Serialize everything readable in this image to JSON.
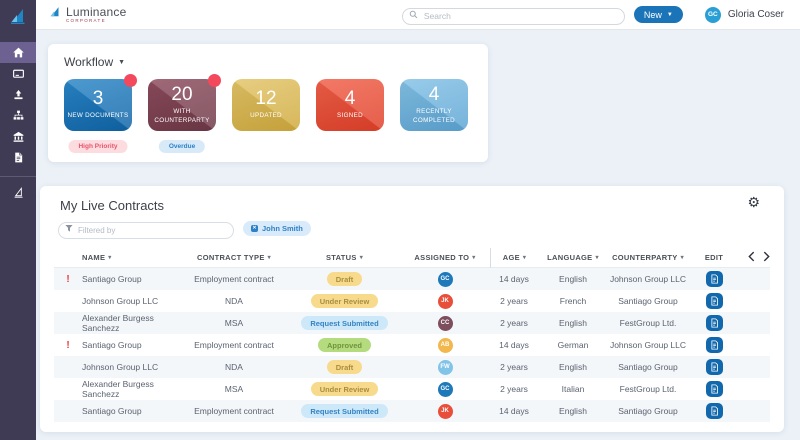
{
  "topbar": {
    "brand": {
      "name": "Luminance",
      "tagline": "CORPORATE"
    },
    "search": {
      "placeholder": "Search"
    },
    "new_button": {
      "label": "New"
    },
    "user": {
      "initials": "GC",
      "name": "Gloria Coser",
      "color": "#2a9fd6"
    }
  },
  "sidebar": {
    "colors": {
      "bg": "#3f3b54",
      "active": "#6c6190"
    },
    "items": [
      {
        "id": "home",
        "icon": "home-icon",
        "active": true
      },
      {
        "id": "contracts",
        "icon": "card-icon",
        "active": false
      },
      {
        "id": "upload",
        "icon": "upload-icon",
        "active": false
      },
      {
        "id": "structure",
        "icon": "sitemap-icon",
        "active": false
      },
      {
        "id": "organisation",
        "icon": "bank-icon",
        "active": false
      },
      {
        "id": "documents",
        "icon": "document-icon",
        "active": false
      }
    ],
    "bottom_items": [
      {
        "id": "luminance-sail",
        "icon": "sail-outline-icon",
        "active": false
      }
    ]
  },
  "workflow": {
    "title": "Workflow",
    "dot_color": "#f4485c",
    "cards": [
      {
        "value": "3",
        "label": "NEW DOCUMENTS",
        "color_top": "#2a87c8",
        "color_bottom": "#0f63a6",
        "notification_dot": true
      },
      {
        "value": "20",
        "label": "WITH COUNTERPARTY",
        "color_top": "#8d4c5e",
        "color_bottom": "#6e3847",
        "notification_dot": true
      },
      {
        "value": "12",
        "label": "UPDATED",
        "color_top": "#e2c468",
        "color_bottom": "#cfa93c",
        "notification_dot": false
      },
      {
        "value": "4",
        "label": "SIGNED",
        "color_top": "#f06049",
        "color_bottom": "#df3f28",
        "notification_dot": false
      },
      {
        "value": "4",
        "label": "RECENTLY COMPLETED",
        "color_top": "#84c2e6",
        "color_bottom": "#5ba3d3",
        "notification_dot": false
      }
    ],
    "badges": [
      {
        "under_card": 0,
        "text": "High Priority",
        "bg": "#fcdcdf",
        "fg": "#e4556a"
      },
      {
        "under_card": 1,
        "text": "Overdue",
        "bg": "#d8eaf8",
        "fg": "#2b80c8"
      }
    ]
  },
  "contracts": {
    "title": "My Live Contracts",
    "filter": {
      "placeholder": "Filtered by",
      "chip": "John Smith"
    },
    "columns": [
      {
        "label": "NAME",
        "sortable": true
      },
      {
        "label": "CONTRACT TYPE",
        "sortable": true
      },
      {
        "label": "STATUS",
        "sortable": true
      },
      {
        "label": "ASSIGNED TO",
        "sortable": true
      },
      {
        "label": "AGE",
        "sortable": true
      },
      {
        "label": "LANGUAGE",
        "sortable": true
      },
      {
        "label": "COUNTERPARTY",
        "sortable": true
      },
      {
        "label": "EDIT",
        "sortable": false
      }
    ],
    "status_styles": {
      "Draft": {
        "bg": "#f8da8c",
        "fg": "#a98e3f"
      },
      "Under Review": {
        "bg": "#f8da8c",
        "fg": "#a98e3f"
      },
      "Request Submitted": {
        "bg": "#cde8f8",
        "fg": "#3584c4"
      },
      "Approved": {
        "bg": "#b4dc7e",
        "fg": "#71943c"
      }
    },
    "rows": [
      {
        "urgent": true,
        "name": "Santiago Group",
        "type": "Employment contract",
        "status": "Draft",
        "assignee": {
          "initials": "GC",
          "color": "#1d79ba"
        },
        "age": "14 days",
        "language": "English",
        "counterparty": "Johnson Group LLC"
      },
      {
        "urgent": false,
        "name": "Johnson Group LLC",
        "type": "NDA",
        "status": "Under Review",
        "assignee": {
          "initials": "JK",
          "color": "#e94e3a"
        },
        "age": "2 years",
        "language": "French",
        "counterparty": "Santiago Group"
      },
      {
        "urgent": false,
        "name": "Alexander Burgess Sanchezz",
        "type": "MSA",
        "status": "Request Submitted",
        "assignee": {
          "initials": "CC",
          "color": "#7d4e5c"
        },
        "age": "2 years",
        "language": "English",
        "counterparty": "FestGroup Ltd."
      },
      {
        "urgent": true,
        "name": "Santiago Group",
        "type": "Employment contract",
        "status": "Approved",
        "assignee": {
          "initials": "AB",
          "color": "#f2b84d"
        },
        "age": "14 days",
        "language": "German",
        "counterparty": "Johnson Group LLC"
      },
      {
        "urgent": false,
        "name": "Johnson Group LLC",
        "type": "NDA",
        "status": "Draft",
        "assignee": {
          "initials": "FW",
          "color": "#82c3e8"
        },
        "age": "2 years",
        "language": "English",
        "counterparty": "Santiago Group"
      },
      {
        "urgent": false,
        "name": "Alexander Burgess Sanchezz",
        "type": "MSA",
        "status": "Under Review",
        "assignee": {
          "initials": "GC",
          "color": "#1d79ba"
        },
        "age": "2 years",
        "language": "Italian",
        "counterparty": "FestGroup Ltd."
      },
      {
        "urgent": false,
        "name": "Santiago Group",
        "type": "Employment contract",
        "status": "Request Submitted",
        "assignee": {
          "initials": "JK",
          "color": "#e94e3a"
        },
        "age": "14 days",
        "language": "English",
        "counterparty": "Santiago Group"
      }
    ]
  }
}
